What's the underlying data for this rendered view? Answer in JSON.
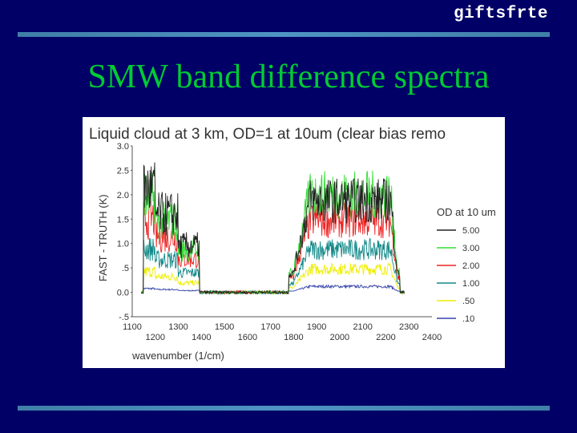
{
  "slide": {
    "brand": "giftsfrte",
    "title": "SMW band difference spectra"
  },
  "colors": {
    "background": "#000066",
    "rule": "#4f94c4",
    "title": "#00cc33",
    "panel": "#ffffff"
  },
  "chart_data": {
    "type": "line",
    "title": "Liquid cloud at 3 km, OD=1 at 10um (clear bias remo",
    "xlabel": "wavenumber (1/cm)",
    "ylabel": "FAST - TRUTH (K)",
    "xlim": [
      1100,
      2400
    ],
    "ylim": [
      -0.5,
      3.0
    ],
    "x_ticks_top_row": [
      "1100",
      "1300",
      "1500",
      "1700",
      "1900",
      "2100",
      "2300"
    ],
    "x_ticks_bottom_row": [
      "1200",
      "1400",
      "1600",
      "1800",
      "2000",
      "2200",
      "2400"
    ],
    "x_ticks_top_values": [
      1100,
      1300,
      1500,
      1700,
      1900,
      2100,
      2300
    ],
    "x_ticks_bottom_values": [
      1200,
      1400,
      1600,
      1800,
      2000,
      2200,
      2400
    ],
    "y_ticks": [
      "3.0",
      "2.5",
      "2.0",
      "1.5",
      "1.0",
      ".5",
      "0.0",
      "-.5"
    ],
    "y_tick_values": [
      3.0,
      2.5,
      2.0,
      1.5,
      1.0,
      0.5,
      0.0,
      -0.5
    ],
    "grid": false,
    "legend_position": "right",
    "legend_title": "OD at 10 um",
    "series": [
      {
        "name": "5.00",
        "color": "#222222",
        "peak_band1": 2.75,
        "peak_band2": 2.35
      },
      {
        "name": "3.00",
        "color": "#33dd33",
        "peak_band1": 2.5,
        "peak_band2": 2.5
      },
      {
        "name": "2.00",
        "color": "#ee2222",
        "peak_band1": 1.95,
        "peak_band2": 1.85
      },
      {
        "name": "1.00",
        "color": "#118888",
        "peak_band1": 1.15,
        "peak_band2": 1.1
      },
      {
        "name": ".50",
        "color": "#eeee00",
        "peak_band1": 0.55,
        "peak_band2": 0.6
      },
      {
        "name": ".10",
        "color": "#3344aa",
        "peak_band1": 0.1,
        "peak_band2": 0.15
      }
    ],
    "bands": [
      [
        1150,
        1390
      ],
      [
        1780,
        2260
      ]
    ]
  }
}
